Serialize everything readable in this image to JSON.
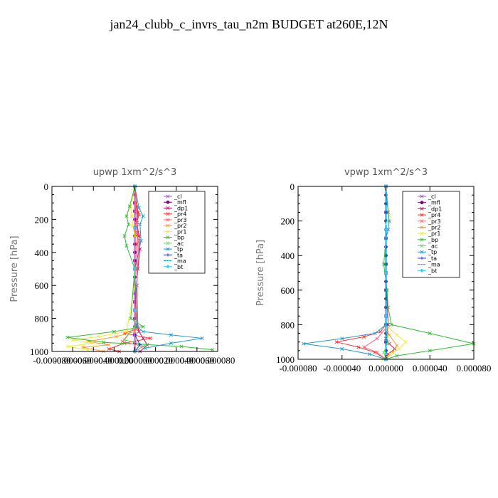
{
  "figure_title": "jan24_clubb_c_invrs_tau_n2m  BUDGET at260E,12N",
  "chart_data": [
    {
      "type": "line",
      "title": "upwp   1xm^2/s^3",
      "ylabel": "Pressure  [hPa]",
      "xlabel": "",
      "y_reversed": true,
      "ylim": [
        0,
        1000
      ],
      "xlim": [
        -8e-05,
        8e-05
      ],
      "yticks": [
        0,
        200,
        400,
        600,
        800,
        1000
      ],
      "ytick_labels": [
        "0",
        "200",
        "400",
        "600",
        "800",
        "1000"
      ],
      "xticks": [
        -8e-05,
        -6e-05,
        -4e-05,
        -2e-05,
        0,
        2e-05,
        4e-05,
        6e-05,
        8e-05
      ],
      "xtick_labels": [
        "-0.000080",
        "-0.000060",
        "-0.000040",
        "-0.000020",
        "0.000000",
        "0.000020",
        "0.000040",
        "0.000060",
        "0.000080"
      ],
      "legend_position": "top-right",
      "series": [
        {
          "name": "_cl",
          "color": "#9b59d0",
          "marker": "x",
          "x": [
            0,
            0,
            0,
            0,
            0,
            0,
            0,
            0
          ],
          "y": [
            0,
            150,
            300,
            450,
            600,
            750,
            900,
            1000
          ]
        },
        {
          "name": "_mfl",
          "color": "#800080",
          "marker": "dot",
          "x": [
            0,
            0,
            0,
            0,
            0,
            0,
            0,
            0,
            0,
            0,
            0,
            0,
            0,
            0,
            0,
            0,
            0,
            0,
            0,
            0,
            0
          ],
          "y": [
            0,
            50,
            100,
            150,
            200,
            250,
            300,
            350,
            400,
            450,
            500,
            550,
            600,
            650,
            700,
            750,
            800,
            850,
            900,
            950,
            1000
          ]
        },
        {
          "name": "_dp1",
          "color": "#cc1166",
          "marker": "x",
          "x": [
            0,
            0,
            3e-06,
            2e-06,
            4e-06,
            5e-06,
            3e-06,
            0,
            2e-06,
            4e-06,
            8e-06,
            1.2e-05,
            5e-06
          ],
          "y": [
            0,
            100,
            160,
            220,
            300,
            380,
            500,
            700,
            840,
            880,
            920,
            960,
            1000
          ]
        },
        {
          "name": "_pr4",
          "color": "#ff3333",
          "marker": "x",
          "x": [
            0,
            2e-06,
            4e-06,
            2e-06,
            3e-06,
            2e-06,
            2e-06,
            3e-06,
            -1e-05,
            1.5e-05,
            -1e-05,
            -2.5e-05,
            -1.5e-05
          ],
          "y": [
            0,
            120,
            170,
            220,
            280,
            350,
            600,
            860,
            890,
            920,
            950,
            985,
            1000
          ]
        },
        {
          "name": "_pr3",
          "color": "#ff6677",
          "marker": "x",
          "x": [
            0,
            1e-06,
            2e-06,
            1e-06,
            4e-06,
            0,
            -1.2e-05,
            8e-06,
            0
          ],
          "y": [
            0,
            150,
            230,
            280,
            330,
            850,
            940,
            970,
            1000
          ]
        },
        {
          "name": "_pr2",
          "color": "#ff9933",
          "marker": "x",
          "x": [
            0,
            0,
            0,
            0,
            -1.8e-05,
            -4.5e-05,
            -2.5e-05,
            -5e-05,
            -3e-05
          ],
          "y": [
            0,
            300,
            600,
            880,
            910,
            940,
            960,
            975,
            1000
          ]
        },
        {
          "name": "_pr1",
          "color": "#eeee33",
          "marker": "x",
          "x": [
            0,
            -4e-06,
            -3e-06,
            -2e-06,
            0,
            0,
            -8e-06,
            -3.5e-05,
            -6e-05,
            -4e-05,
            -6.5e-05,
            -4.5e-05
          ],
          "y": [
            0,
            130,
            180,
            240,
            300,
            600,
            880,
            910,
            930,
            950,
            970,
            990
          ]
        },
        {
          "name": "_bp",
          "color": "#33bb33",
          "marker": "x",
          "x": [
            0,
            -5e-06,
            -8e-06,
            -6e-06,
            -1e-05,
            -8e-06,
            0,
            -4e-06,
            8e-06,
            -2e-05,
            -6.5e-05,
            -3e-05,
            4.5e-05,
            7.5e-05
          ],
          "y": [
            0,
            120,
            180,
            230,
            300,
            360,
            500,
            800,
            850,
            880,
            915,
            945,
            970,
            990
          ]
        },
        {
          "name": "_ac",
          "color": "#66dd66",
          "marker": "x",
          "x": [
            0,
            0,
            0,
            -1e-05,
            1e-05,
            0
          ],
          "y": [
            0,
            500,
            850,
            930,
            960,
            1000
          ]
        },
        {
          "name": "_tp",
          "color": "#2299cc",
          "marker": "x",
          "x": [
            0,
            4e-06,
            8e-06,
            5e-06,
            6e-06,
            0,
            2e-06,
            8e-06,
            3.5e-05,
            6.5e-05,
            3.5e-05,
            1e-05
          ],
          "y": [
            0,
            130,
            180,
            230,
            330,
            500,
            850,
            880,
            900,
            920,
            950,
            980
          ]
        },
        {
          "name": "_ta",
          "color": "#2233cc",
          "marker": "plus",
          "x": [
            0,
            0,
            0,
            5e-06,
            0
          ],
          "y": [
            0,
            500,
            900,
            960,
            1000
          ]
        },
        {
          "name": "_ma",
          "color": "#00aaaa",
          "marker": "none",
          "x": [
            0,
            0,
            0,
            0,
            0
          ],
          "y": [
            0,
            250,
            500,
            750,
            1000
          ]
        },
        {
          "name": "_bt",
          "color": "#33ccff",
          "marker": "diamond",
          "x": [
            0,
            0,
            0,
            0,
            0
          ],
          "y": [
            0,
            250,
            500,
            750,
            1000
          ]
        }
      ]
    },
    {
      "type": "line",
      "title": "vpwp   1xm^2/s^3",
      "ylabel": "Pressure  [hPa]",
      "xlabel": "",
      "y_reversed": true,
      "ylim": [
        0,
        1000
      ],
      "xlim": [
        -8e-05,
        8e-05
      ],
      "yticks": [
        0,
        200,
        400,
        600,
        800,
        1000
      ],
      "ytick_labels": [
        "0",
        "200",
        "400",
        "600",
        "800",
        "1000"
      ],
      "xticks": [
        -8e-05,
        -4e-05,
        0,
        4e-05,
        8e-05
      ],
      "xtick_labels": [
        "-0.000080",
        "-0.000040",
        "0.000000",
        "0.000040",
        "0.000080"
      ],
      "legend_position": "top-right",
      "series": [
        {
          "name": "_cl",
          "color": "#9b59d0",
          "marker": "x",
          "x": [
            0,
            0,
            0,
            0,
            0,
            0,
            0,
            0
          ],
          "y": [
            0,
            150,
            300,
            450,
            600,
            750,
            900,
            1000
          ]
        },
        {
          "name": "_mfl",
          "color": "#800080",
          "marker": "dot",
          "x": [
            0,
            0,
            0,
            0,
            0,
            0,
            0,
            0,
            0,
            0,
            0,
            0,
            0,
            0,
            0,
            0,
            0,
            0,
            0,
            0,
            0
          ],
          "y": [
            0,
            50,
            100,
            150,
            200,
            250,
            300,
            350,
            400,
            450,
            500,
            550,
            600,
            650,
            700,
            750,
            800,
            850,
            900,
            950,
            1000
          ]
        },
        {
          "name": "_dp1",
          "color": "#cc1166",
          "marker": "x",
          "x": [
            0,
            0,
            2e-06,
            1e-06,
            0,
            3e-06,
            8e-06,
            2e-06,
            0
          ],
          "y": [
            0,
            500,
            800,
            850,
            880,
            910,
            940,
            970,
            1000
          ]
        },
        {
          "name": "_pr4",
          "color": "#ff3333",
          "marker": "x",
          "x": [
            0,
            0,
            -5e-06,
            -2e-05,
            -4.5e-05,
            -2.5e-05,
            -1e-05,
            0
          ],
          "y": [
            0,
            800,
            840,
            870,
            900,
            930,
            960,
            1000
          ]
        },
        {
          "name": "_pr3",
          "color": "#ff6677",
          "marker": "x",
          "x": [
            0,
            0,
            -8e-06,
            -2e-05,
            -8e-06,
            0
          ],
          "y": [
            0,
            820,
            880,
            930,
            960,
            1000
          ]
        },
        {
          "name": "_pr2",
          "color": "#ff9933",
          "marker": "x",
          "x": [
            0,
            0,
            3e-06,
            1e-05,
            6e-06,
            0
          ],
          "y": [
            0,
            820,
            860,
            920,
            960,
            1000
          ]
        },
        {
          "name": "_pr1",
          "color": "#eeee33",
          "marker": "x",
          "x": [
            0,
            3e-06,
            0,
            0,
            1e-05,
            1.8e-05,
            1.2e-05,
            4e-06,
            -3e-06
          ],
          "y": [
            0,
            170,
            220,
            800,
            860,
            900,
            940,
            970,
            1000
          ]
        },
        {
          "name": "_bp",
          "color": "#33bb33",
          "marker": "x",
          "x": [
            0,
            0,
            -2e-06,
            1e-06,
            2e-06,
            5e-06,
            4e-05,
            8e-05,
            4e-05,
            1e-05,
            0
          ],
          "y": [
            0,
            300,
            450,
            600,
            700,
            800,
            850,
            910,
            950,
            980,
            1000
          ]
        },
        {
          "name": "_ac",
          "color": "#66dd66",
          "marker": "x",
          "x": [
            0,
            0,
            2e-06,
            -2e-06,
            0
          ],
          "y": [
            0,
            800,
            900,
            960,
            1000
          ]
        },
        {
          "name": "_tp",
          "color": "#2299cc",
          "marker": "x",
          "x": [
            0,
            2e-06,
            3e-06,
            2e-06,
            0,
            0,
            -1e-05,
            -4e-05,
            -7.5e-05,
            -4e-05,
            -1.5e-05,
            0
          ],
          "y": [
            0,
            150,
            200,
            250,
            300,
            800,
            850,
            880,
            910,
            940,
            970,
            1000
          ]
        },
        {
          "name": "_ta",
          "color": "#2233cc",
          "marker": "plus",
          "x": [
            0,
            0,
            0,
            0
          ],
          "y": [
            0,
            500,
            900,
            1000
          ]
        },
        {
          "name": "_ma",
          "color": "#00aaaa",
          "marker": "none",
          "x": [
            0,
            0,
            0,
            0,
            0
          ],
          "y": [
            0,
            250,
            500,
            750,
            1000
          ]
        },
        {
          "name": "_bt",
          "color": "#33ccff",
          "marker": "diamond",
          "x": [
            0,
            0,
            0,
            0,
            0
          ],
          "y": [
            0,
            250,
            500,
            750,
            1000
          ]
        }
      ]
    }
  ]
}
